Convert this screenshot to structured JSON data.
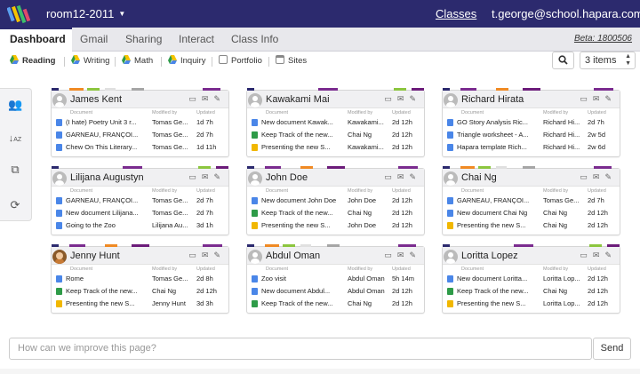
{
  "topbar": {
    "room": "room12-2011",
    "classes_link": "Classes",
    "user": "t.george@school.hapara.com",
    "bg_color": "#2c2a6e"
  },
  "tabs": [
    {
      "label": "Dashboard",
      "active": true
    },
    {
      "label": "Gmail"
    },
    {
      "label": "Sharing"
    },
    {
      "label": "Interact"
    },
    {
      "label": "Class Info"
    }
  ],
  "beta": "Beta: 1800506",
  "subtabs": [
    {
      "label": "Reading",
      "icon": "drive-icon",
      "active": true
    },
    {
      "label": "Writing",
      "icon": "drive-icon"
    },
    {
      "label": "Math",
      "icon": "drive-icon"
    },
    {
      "label": "Inquiry",
      "icon": "drive-icon"
    },
    {
      "label": "Portfolio",
      "icon": "portfolio-icon"
    },
    {
      "label": "Sites",
      "icon": "sites-icon"
    }
  ],
  "toolbar": {
    "search_icon": "search-icon",
    "items_select": "3 items"
  },
  "leftbar": [
    "group-icon",
    "sort-icon",
    "folder-share-icon",
    "refresh-icon"
  ],
  "col_headers": {
    "doc": "Document",
    "mod": "Modified by",
    "upd": "Updated"
  },
  "cards": [
    {
      "name": "James Kent",
      "avatar": "default",
      "rows": [
        {
          "type": "doc",
          "doc": "(I hate) Poetry Unit 3 r...",
          "mod": "Tomas Ge...",
          "upd": "1d 7h"
        },
        {
          "type": "doc",
          "doc": "GARNEAU, FRANÇOI...",
          "mod": "Tomas Ge...",
          "upd": "2d 7h"
        },
        {
          "type": "doc",
          "doc": "Chew On This Literary...",
          "mod": "Tomas Ge...",
          "upd": "1d 11h"
        }
      ]
    },
    {
      "name": "Kawakami Mai",
      "avatar": "default",
      "rows": [
        {
          "type": "doc",
          "doc": "New document Kawak...",
          "mod": "Kawakami...",
          "upd": "2d 12h"
        },
        {
          "type": "sheet",
          "doc": "Keep Track of the new...",
          "mod": "Chai Ng",
          "upd": "2d 12h"
        },
        {
          "type": "slide",
          "doc": "Presenting the new S...",
          "mod": "Kawakami...",
          "upd": "2d 12h"
        }
      ]
    },
    {
      "name": "Richard Hirata",
      "avatar": "default",
      "rows": [
        {
          "type": "doc",
          "doc": "GO Story Analysis Ric...",
          "mod": "Richard Hi...",
          "upd": "2d 7h"
        },
        {
          "type": "doc",
          "doc": "Triangle worksheet - A...",
          "mod": "Richard Hi...",
          "upd": "2w 5d"
        },
        {
          "type": "doc",
          "doc": "Hapara template Rich...",
          "mod": "Richard Hi...",
          "upd": "2w 6d"
        }
      ]
    },
    {
      "name": "Lilijana Augustyn",
      "avatar": "default",
      "rows": [
        {
          "type": "doc",
          "doc": "GARNEAU, FRANÇOI...",
          "mod": "Tomas Ge...",
          "upd": "2d 7h"
        },
        {
          "type": "doc",
          "doc": "New document Lilijana...",
          "mod": "Tomas Ge...",
          "upd": "2d 7h"
        },
        {
          "type": "doc",
          "doc": "Going to the Zoo",
          "mod": "Lilijana Au...",
          "upd": "3d 1h"
        }
      ]
    },
    {
      "name": "John Doe",
      "avatar": "default",
      "rows": [
        {
          "type": "doc",
          "doc": "New document John Doe",
          "mod": "John Doe",
          "upd": "2d 12h"
        },
        {
          "type": "sheet",
          "doc": "Keep Track of the new...",
          "mod": "Chai Ng",
          "upd": "2d 12h"
        },
        {
          "type": "slide",
          "doc": "Presenting the new S...",
          "mod": "John Doe",
          "upd": "2d 12h"
        }
      ]
    },
    {
      "name": "Chai Ng",
      "avatar": "default",
      "rows": [
        {
          "type": "doc",
          "doc": "GARNEAU, FRANÇOI...",
          "mod": "Tomas Ge...",
          "upd": "2d 7h"
        },
        {
          "type": "doc",
          "doc": "New document Chai Ng",
          "mod": "Chai Ng",
          "upd": "2d 12h"
        },
        {
          "type": "slide",
          "doc": "Presenting the new S...",
          "mod": "Chai Ng",
          "upd": "2d 12h"
        }
      ]
    },
    {
      "name": "Jenny Hunt",
      "avatar": "photo",
      "rows": [
        {
          "type": "doc",
          "doc": "Rome",
          "mod": "Tomas Ge...",
          "upd": "2d 8h"
        },
        {
          "type": "sheet",
          "doc": "Keep Track of the new...",
          "mod": "Chai Ng",
          "upd": "2d 12h"
        },
        {
          "type": "slide",
          "doc": "Presenting the new S...",
          "mod": "Jenny Hunt",
          "upd": "3d 3h"
        }
      ]
    },
    {
      "name": "Abdul Oman",
      "avatar": "default",
      "rows": [
        {
          "type": "doc",
          "doc": "Zoo visit",
          "mod": "Abdul Oman",
          "upd": "5h 14m"
        },
        {
          "type": "doc",
          "doc": "New document Abdul...",
          "mod": "Abdul Oman",
          "upd": "2d 12h"
        },
        {
          "type": "sheet",
          "doc": "Keep Track of the new...",
          "mod": "Chai Ng",
          "upd": "2d 12h"
        }
      ]
    },
    {
      "name": "Loritta Lopez",
      "avatar": "default",
      "rows": [
        {
          "type": "doc",
          "doc": "New document Loritta...",
          "mod": "Loritta Lop...",
          "upd": "2d 12h"
        },
        {
          "type": "sheet",
          "doc": "Keep Track of the new...",
          "mod": "Chai Ng",
          "upd": "2d 12h"
        },
        {
          "type": "slide",
          "doc": "Presenting the new S...",
          "mod": "Loritta Lop...",
          "upd": "2d 12h"
        }
      ]
    }
  ],
  "feedback": {
    "placeholder": "How can we improve this page?",
    "send": "Send"
  }
}
